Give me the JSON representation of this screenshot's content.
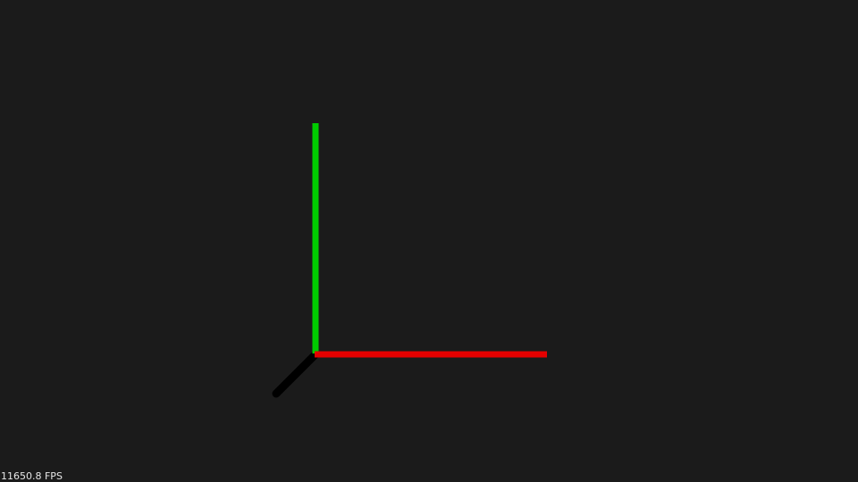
{
  "scene": {
    "background_color": "#1b1b1b",
    "axes": [
      {
        "id": "x-axis",
        "color": "#e60000"
      },
      {
        "id": "y-axis",
        "color": "#00cc00"
      },
      {
        "id": "z-axis",
        "color": "#000000"
      }
    ]
  },
  "overlay": {
    "fps_text": "11650.8 FPS"
  }
}
